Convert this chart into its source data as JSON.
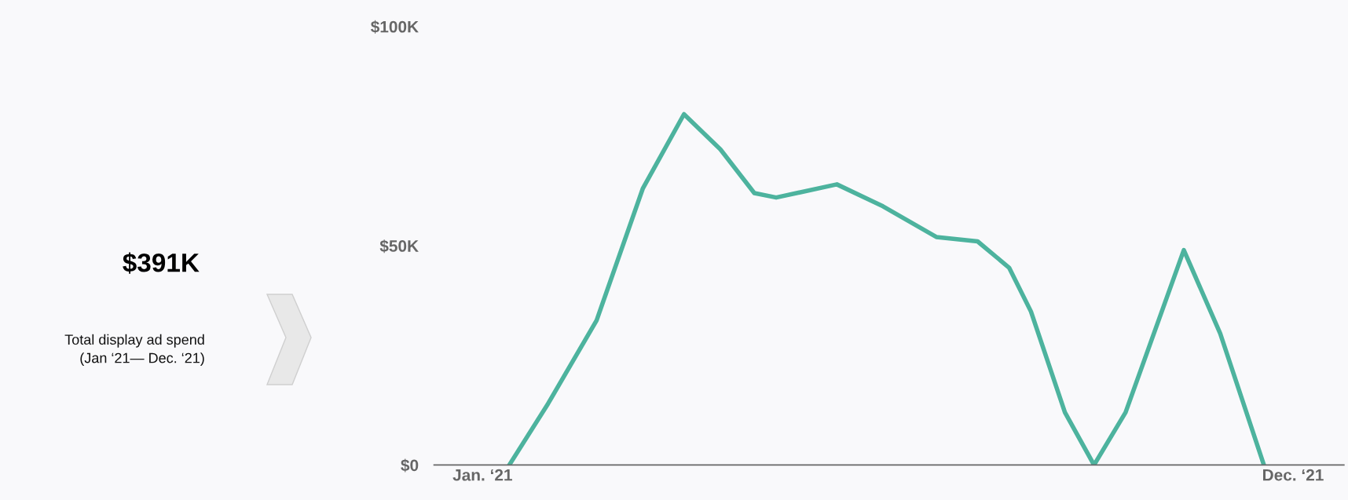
{
  "chart_data": {
    "type": "line",
    "annotations": [
      "$391K",
      "Total display ad spend\n(Jan ‘21— Dec. ‘21)"
    ],
    "x": [
      "2021-01-26",
      "2021-02-11",
      "2021-03-03",
      "2021-03-22",
      "2021-04-08",
      "2021-04-23",
      "2021-05-07",
      "2021-05-16",
      "2021-06-10",
      "2021-06-29",
      "2021-07-21",
      "2021-08-07",
      "2021-08-20",
      "2021-08-29",
      "2021-09-12",
      "2021-09-24",
      "2021-10-07",
      "2021-10-31",
      "2021-11-15",
      "2021-12-03"
    ],
    "series": [
      {
        "color": "#4db39e",
        "values": [
          0,
          14,
          33,
          63,
          80,
          72,
          62,
          61,
          64,
          59,
          52,
          51,
          45,
          35,
          12,
          0,
          12,
          49,
          30,
          0
        ]
      }
    ],
    "xlim": [
      "2020-12-26",
      "2022-01-05"
    ],
    "xticks": [
      {
        "value": "2021-01-15",
        "label": "Jan. ‘21"
      },
      {
        "value": "2021-12-15",
        "label": "Dec. ‘21"
      }
    ],
    "ylim": [
      0,
      100
    ],
    "yticks": [
      {
        "value": 0,
        "label": "$0"
      },
      {
        "value": 50,
        "label": "$50K"
      },
      {
        "value": 100,
        "label": "$100K"
      }
    ],
    "grid": false,
    "legend": false,
    "marker": "none",
    "line_style": "solid"
  }
}
